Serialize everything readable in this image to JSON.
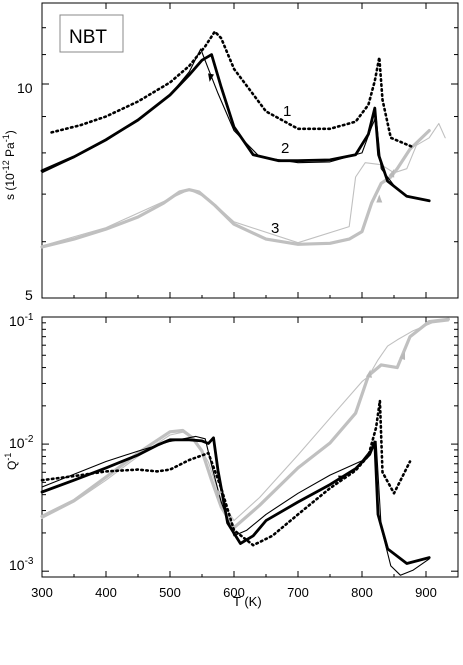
{
  "chart_data": [
    {
      "type": "line",
      "panel": "top",
      "label_box": "NBT",
      "ylabel": "s (10⁻¹² Pa⁻¹)",
      "yscale": "log",
      "ylim": [
        5,
        13
      ],
      "yticks": [
        "5",
        "10"
      ],
      "xlim": [
        300,
        950
      ],
      "curve_labels": [
        "1",
        "2",
        "3"
      ],
      "series": [
        {
          "name": "1",
          "style": "dotted",
          "color": "#000000",
          "x": [
            315,
            360,
            400,
            450,
            500,
            530,
            555,
            570,
            580,
            600,
            650,
            700,
            750,
            790,
            810,
            820,
            827,
            832,
            845,
            880
          ],
          "y": [
            8.55,
            8.75,
            9.0,
            9.45,
            10.05,
            10.6,
            11.3,
            11.85,
            11.6,
            10.5,
            9.15,
            8.65,
            8.65,
            8.85,
            9.35,
            10.1,
            10.9,
            9.5,
            8.4,
            8.15
          ]
        },
        {
          "name": "2",
          "style": "solid-thick",
          "color": "#000000",
          "x": [
            300,
            350,
            400,
            450,
            500,
            530,
            550,
            565,
            580,
            600,
            630,
            670,
            700,
            750,
            790,
            810,
            820,
            826,
            840,
            870,
            905
          ],
          "y": [
            7.55,
            7.9,
            8.35,
            8.9,
            9.65,
            10.3,
            10.8,
            11.0,
            9.9,
            8.7,
            7.95,
            7.8,
            7.8,
            7.82,
            7.95,
            8.5,
            9.25,
            7.95,
            7.3,
            6.95,
            6.85
          ]
        },
        {
          "name": "2 (thin)",
          "style": "solid-thin",
          "color": "#000000",
          "x": [
            300,
            350,
            400,
            450,
            500,
            530,
            548,
            560,
            575,
            600,
            640,
            700,
            750,
            800,
            815,
            822,
            830,
            850
          ],
          "y": [
            7.5,
            7.88,
            8.32,
            8.9,
            9.65,
            10.4,
            11.2,
            10.5,
            9.7,
            8.6,
            7.9,
            7.75,
            7.77,
            8.0,
            8.7,
            9.0,
            7.6,
            7.2
          ]
        },
        {
          "name": "3",
          "style": "solid-thick",
          "color": "#c0c0c0",
          "x": [
            300,
            350,
            400,
            450,
            490,
            515,
            530,
            545,
            570,
            600,
            650,
            700,
            750,
            780,
            800,
            815,
            830,
            845,
            855,
            875,
            905
          ],
          "y": [
            5.9,
            6.05,
            6.25,
            6.5,
            6.8,
            7.05,
            7.1,
            7.05,
            6.75,
            6.35,
            6.05,
            5.95,
            5.97,
            6.05,
            6.2,
            6.8,
            7.25,
            7.4,
            7.6,
            8.1,
            8.6
          ]
        },
        {
          "name": "3 (thin)",
          "style": "solid-thin",
          "color": "#c0c0c0",
          "x": [
            300,
            400,
            500,
            530,
            560,
            600,
            700,
            780,
            790,
            805,
            830,
            850,
            870,
            885,
            905,
            920,
            930
          ],
          "y": [
            5.92,
            6.28,
            6.9,
            7.1,
            6.9,
            6.4,
            5.98,
            6.3,
            7.4,
            7.75,
            7.7,
            7.5,
            7.6,
            8.2,
            8.4,
            8.8,
            8.4
          ]
        }
      ]
    },
    {
      "type": "line",
      "panel": "bottom",
      "ylabel": "Q⁻¹",
      "yscale": "log",
      "ylim": [
        0.0009,
        0.1
      ],
      "yticks": [
        "10⁻³",
        "10⁻²",
        "10⁻¹"
      ],
      "xlabel": "T (K)",
      "xlim": [
        300,
        950
      ],
      "xticks": [
        "300",
        "400",
        "500",
        "600",
        "700",
        "800",
        "900"
      ],
      "series": [
        {
          "name": "1",
          "style": "dotted",
          "color": "#000000",
          "x": [
            300,
            350,
            400,
            450,
            480,
            500,
            530,
            560,
            580,
            600,
            630,
            660,
            700,
            750,
            790,
            810,
            822,
            828,
            832,
            850,
            875
          ],
          "y": [
            0.0052,
            0.0056,
            0.0061,
            0.0063,
            0.0061,
            0.0063,
            0.0075,
            0.0085,
            0.0045,
            0.0021,
            0.0016,
            0.0019,
            0.0028,
            0.0045,
            0.0062,
            0.0081,
            0.0135,
            0.022,
            0.006,
            0.0041,
            0.0073
          ]
        },
        {
          "name": "2",
          "style": "solid-thick",
          "color": "#000000",
          "x": [
            300,
            350,
            400,
            450,
            480,
            500,
            530,
            550,
            560,
            568,
            575,
            590,
            610,
            630,
            650,
            700,
            750,
            790,
            812,
            820,
            825,
            840,
            870,
            905
          ],
          "y": [
            0.0042,
            0.0052,
            0.0065,
            0.0082,
            0.0098,
            0.0108,
            0.0108,
            0.0106,
            0.0101,
            0.0112,
            0.0062,
            0.0024,
            0.00165,
            0.0019,
            0.0025,
            0.0035,
            0.0048,
            0.0064,
            0.0083,
            0.0104,
            0.0028,
            0.0015,
            0.00115,
            0.00128
          ]
        },
        {
          "name": "2 (thin)",
          "style": "solid-thin",
          "color": "#000000",
          "x": [
            300,
            350,
            400,
            450,
            500,
            540,
            555,
            565,
            580,
            600,
            620,
            650,
            700,
            750,
            800,
            815,
            822,
            830,
            845,
            860,
            880,
            905
          ],
          "y": [
            0.0046,
            0.0058,
            0.0073,
            0.0088,
            0.0105,
            0.0115,
            0.011,
            0.0068,
            0.0035,
            0.0019,
            0.0021,
            0.0028,
            0.0041,
            0.0057,
            0.0074,
            0.0092,
            0.0105,
            0.0022,
            0.0011,
            0.00093,
            0.00102,
            0.00125
          ]
        },
        {
          "name": "3",
          "style": "solid-thick",
          "color": "#c0c0c0",
          "x": [
            300,
            350,
            400,
            450,
            500,
            520,
            535,
            550,
            565,
            580,
            600,
            640,
            700,
            750,
            790,
            810,
            830,
            855,
            875,
            905,
            935
          ],
          "y": [
            0.0027,
            0.0036,
            0.0055,
            0.0085,
            0.0125,
            0.0128,
            0.0112,
            0.0088,
            0.0052,
            0.0032,
            0.0022,
            0.0033,
            0.0065,
            0.0102,
            0.0175,
            0.0345,
            0.042,
            0.04,
            0.07,
            0.092,
            0.096
          ]
        },
        {
          "name": "3 (thin)",
          "style": "solid-thin",
          "color": "#c0c0c0",
          "x": [
            300,
            350,
            400,
            450,
            500,
            520,
            540,
            560,
            580,
            600,
            640,
            700,
            750,
            800,
            810,
            825,
            840,
            855,
            880,
            910,
            935
          ],
          "y": [
            0.0026,
            0.0035,
            0.0052,
            0.008,
            0.0118,
            0.0124,
            0.0108,
            0.0072,
            0.0036,
            0.0025,
            0.0038,
            0.0082,
            0.016,
            0.031,
            0.034,
            0.046,
            0.059,
            0.066,
            0.078,
            0.09,
            0.093
          ]
        }
      ]
    }
  ]
}
